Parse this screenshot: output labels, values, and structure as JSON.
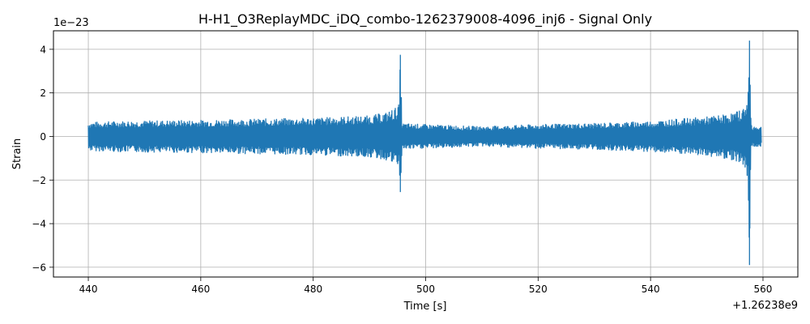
{
  "chart_data": {
    "type": "line",
    "title": "H-H1_O3ReplayMDC_iDQ_combo-1262379008-4096_inj6 - Signal Only",
    "xlabel": "Time [s]",
    "ylabel": "Strain",
    "y_scale_label": "1e−23",
    "x_offset_label": "+1.26238e9",
    "xlim": [
      433.8,
      566.2
    ],
    "ylim": [
      -6.45,
      4.85
    ],
    "x_ticks": [
      440,
      460,
      480,
      500,
      520,
      540,
      560
    ],
    "x_tick_labels": [
      "440",
      "460",
      "480",
      "500",
      "520",
      "540",
      "560"
    ],
    "y_ticks": [
      -6,
      -4,
      -2,
      0,
      2,
      4
    ],
    "y_tick_labels": [
      "−6",
      "−4",
      "−2",
      "0",
      "2",
      "4"
    ],
    "grid": true,
    "color": "#1f77b4",
    "series": [
      {
        "name": "",
        "envelope": [
          [
            440.0,
            -0.65,
            0.65
          ],
          [
            445.0,
            -0.7,
            0.7
          ],
          [
            450.0,
            -0.72,
            0.72
          ],
          [
            460.0,
            -0.75,
            0.75
          ],
          [
            470.0,
            -0.8,
            0.8
          ],
          [
            480.0,
            -0.85,
            0.85
          ],
          [
            485.0,
            -0.9,
            0.9
          ],
          [
            490.0,
            -0.95,
            0.95
          ],
          [
            493.0,
            -1.1,
            1.1
          ],
          [
            494.5,
            -1.3,
            1.3
          ],
          [
            495.3,
            -1.4,
            1.5
          ],
          [
            495.5,
            -2.55,
            3.75
          ],
          [
            495.8,
            -0.6,
            0.6
          ],
          [
            500.0,
            -0.55,
            0.55
          ],
          [
            505.0,
            -0.5,
            0.5
          ],
          [
            510.0,
            -0.45,
            0.45
          ],
          [
            515.0,
            -0.5,
            0.5
          ],
          [
            520.0,
            -0.55,
            0.55
          ],
          [
            530.0,
            -0.6,
            0.6
          ],
          [
            540.0,
            -0.7,
            0.7
          ],
          [
            545.0,
            -0.8,
            0.8
          ],
          [
            550.0,
            -0.9,
            0.9
          ],
          [
            553.0,
            -1.0,
            1.0
          ],
          [
            555.0,
            -1.1,
            1.1
          ],
          [
            556.5,
            -1.3,
            1.3
          ],
          [
            557.3,
            -1.9,
            1.8
          ],
          [
            557.6,
            -5.9,
            4.4
          ],
          [
            557.9,
            -0.5,
            0.5
          ],
          [
            559.7,
            -0.45,
            0.45
          ]
        ]
      }
    ]
  }
}
